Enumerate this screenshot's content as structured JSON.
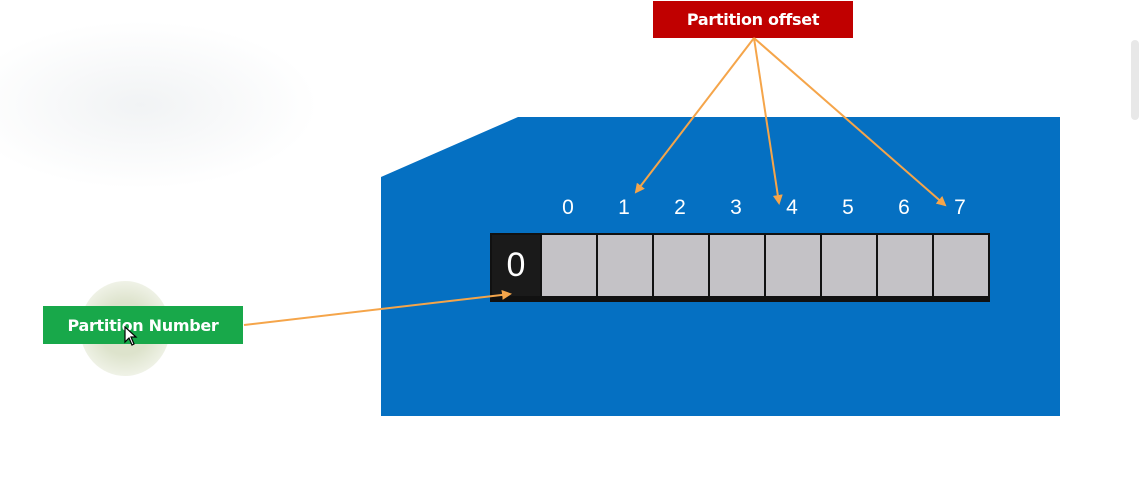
{
  "labels": {
    "partition_offset": "Partition offset",
    "partition_number": "Partition Number"
  },
  "offsets": [
    "0",
    "1",
    "2",
    "3",
    "4",
    "5",
    "6",
    "7"
  ],
  "partition_value": "0",
  "colors": {
    "panel": "#0570c2",
    "offset_label": "#c00000",
    "number_label": "#18a84a",
    "arrow": "#f5a54a",
    "cell": "#c4c2c6",
    "first_cell": "#1a1a1a"
  }
}
